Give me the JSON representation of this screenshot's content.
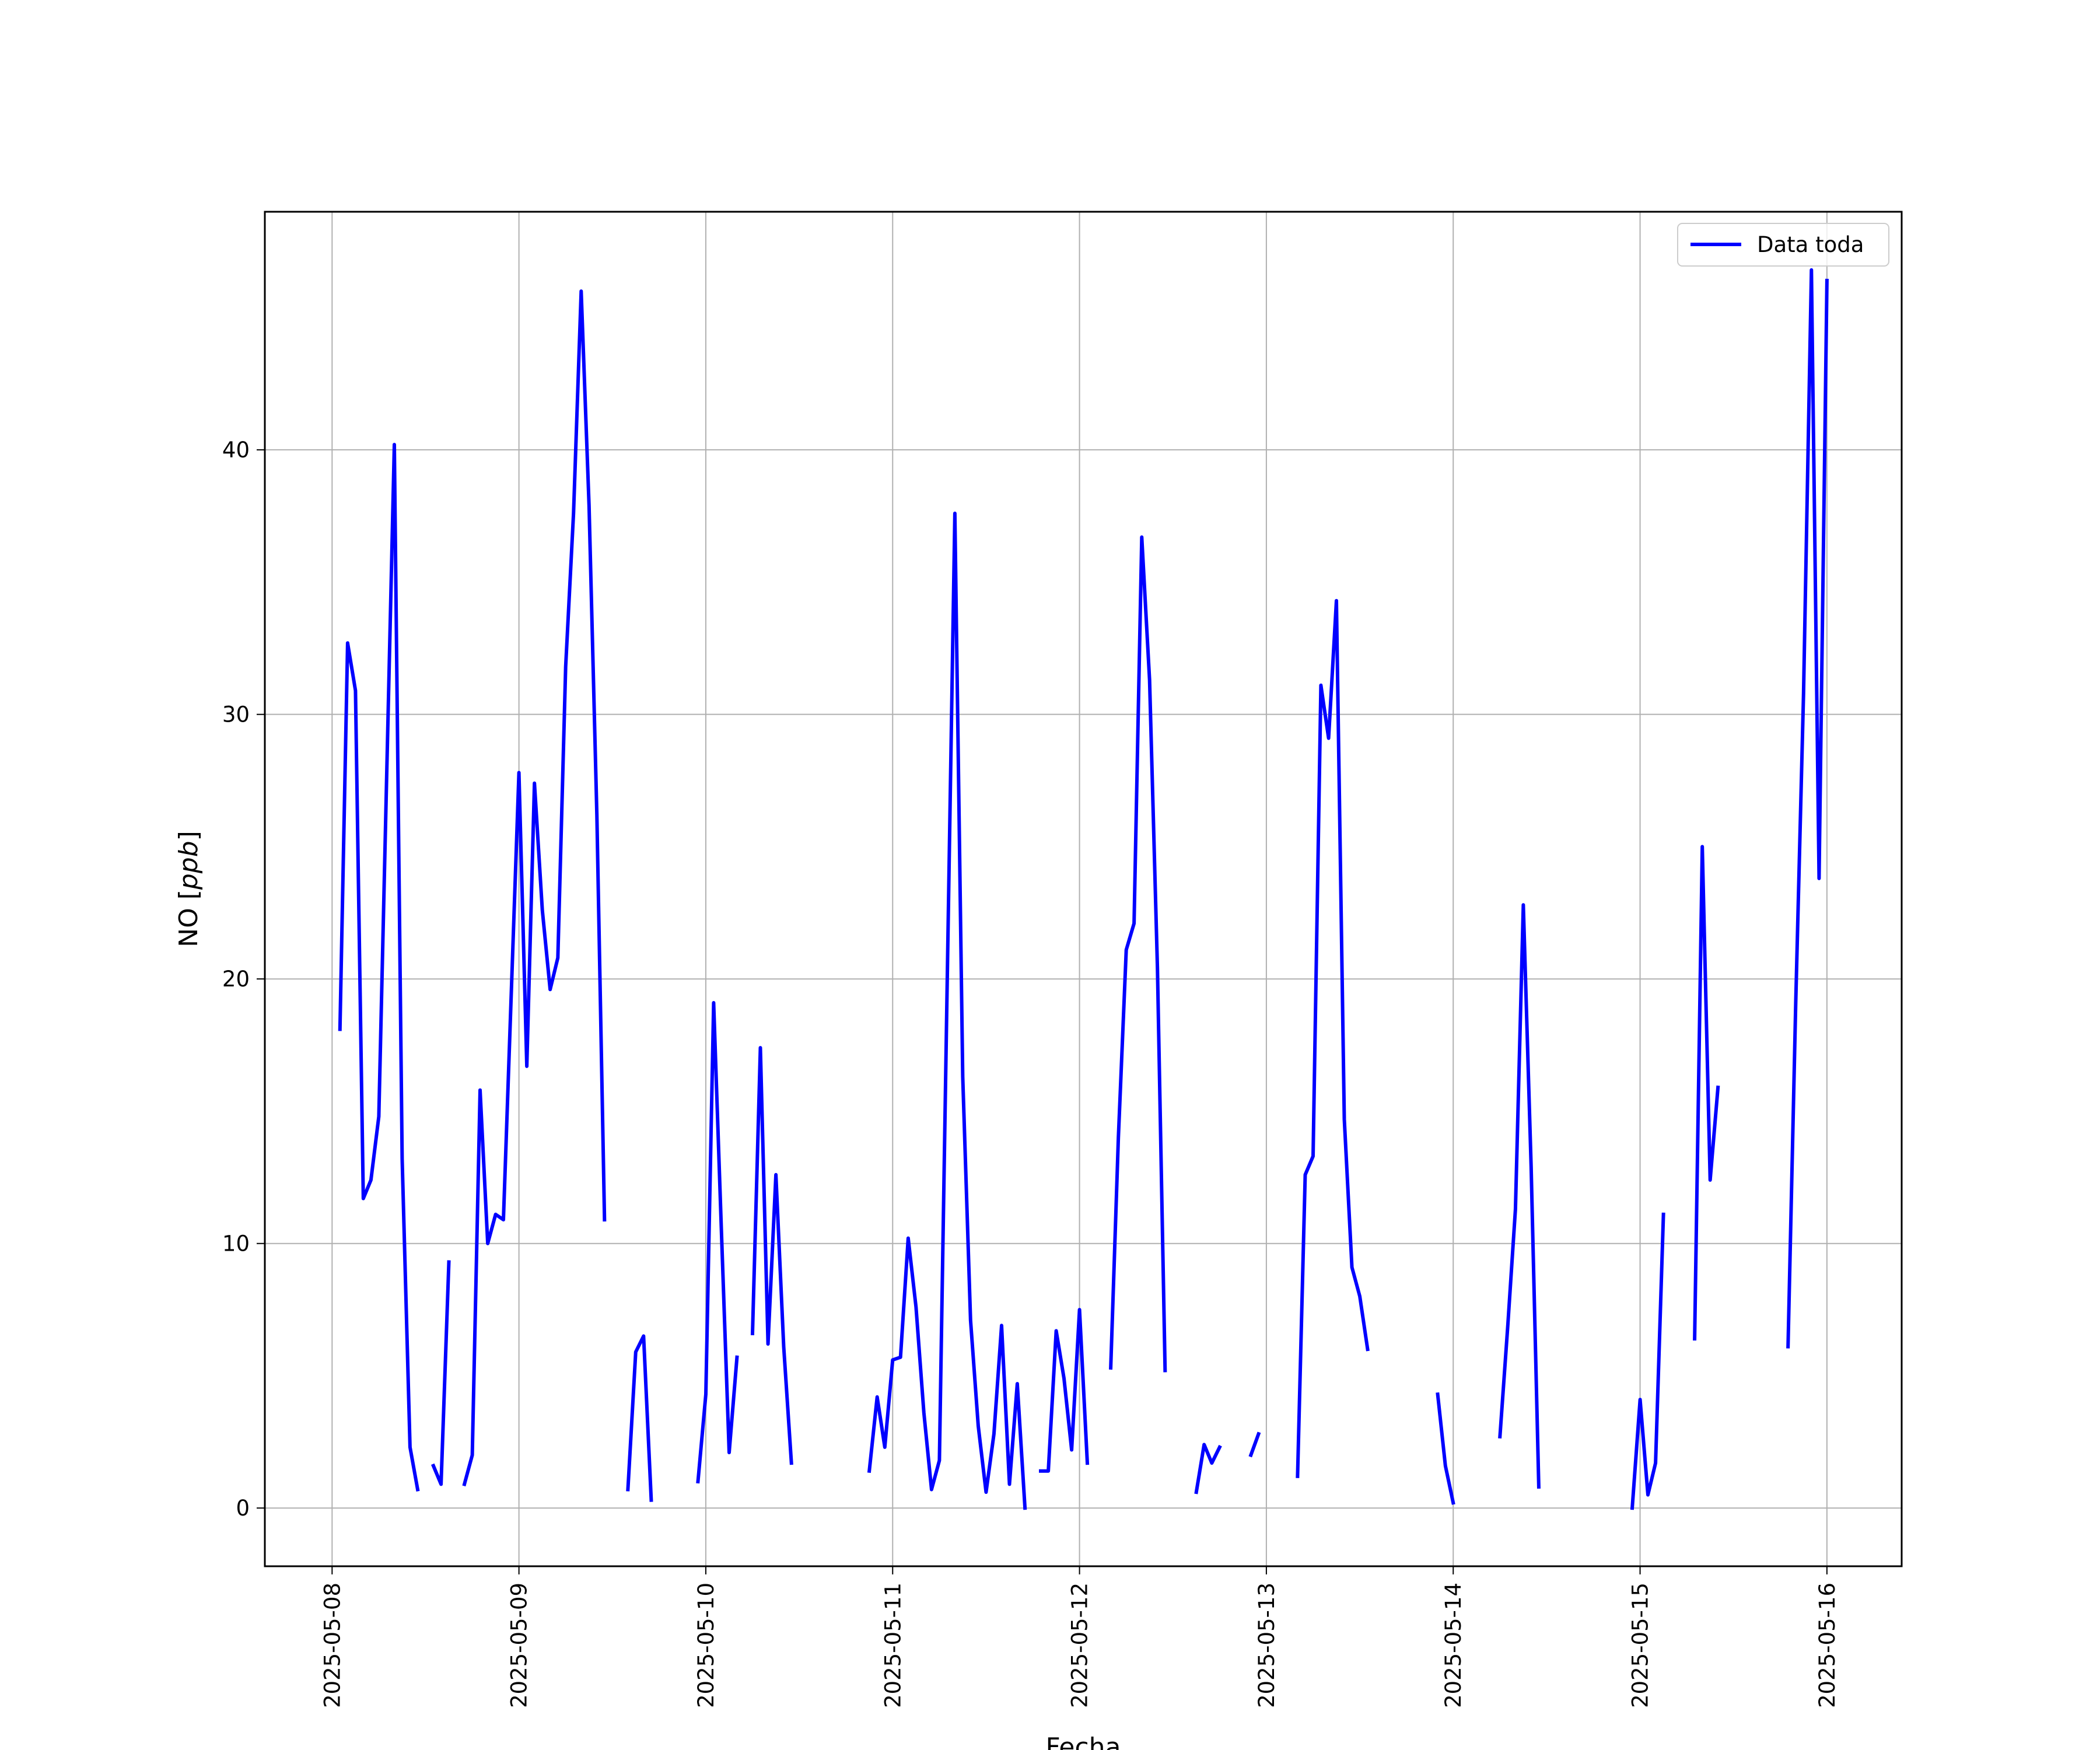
{
  "chart_data": {
    "type": "line",
    "title": "",
    "xlabel": "Fecha",
    "ylabel": "NO [ppb]",
    "ylabel_main": "NO [",
    "ylabel_unit": "ppb",
    "ylabel_close": "]",
    "x_ticks": [
      "2025-05-08",
      "2025-05-09",
      "2025-05-10",
      "2025-05-11",
      "2025-05-12",
      "2025-05-13",
      "2025-05-14",
      "2025-05-15",
      "2025-05-16"
    ],
    "y_ticks": [
      0,
      10,
      20,
      30,
      40
    ],
    "xlim": [
      -0.36,
      8.4
    ],
    "ylim": [
      -2.2,
      49.0
    ],
    "grid": true,
    "legend": {
      "placement": "top-right",
      "entries": [
        "Data toda"
      ]
    },
    "series": [
      {
        "name": "Data toda",
        "color": "#0000ff",
        "x_unit": "days since 2025-05-08 00:00",
        "segments": [
          [
            [
              0.042,
              18.1
            ],
            [
              0.083,
              32.7
            ],
            [
              0.125,
              30.9
            ],
            [
              0.167,
              11.7
            ],
            [
              0.208,
              12.4
            ],
            [
              0.25,
              14.8
            ],
            [
              0.333,
              40.2
            ],
            [
              0.375,
              13.2
            ],
            [
              0.417,
              2.3
            ],
            [
              0.458,
              0.7
            ]
          ],
          [
            [
              0.542,
              1.6
            ],
            [
              0.583,
              0.9
            ],
            [
              0.625,
              9.3
            ]
          ],
          [
            [
              0.708,
              0.9
            ],
            [
              0.75,
              2.0
            ],
            [
              0.792,
              15.8
            ],
            [
              0.833,
              10.0
            ],
            [
              0.875,
              11.1
            ],
            [
              0.917,
              10.9
            ],
            [
              1.0,
              27.8
            ],
            [
              1.042,
              16.7
            ],
            [
              1.083,
              27.4
            ],
            [
              1.125,
              22.6
            ],
            [
              1.167,
              19.6
            ],
            [
              1.208,
              20.8
            ],
            [
              1.25,
              31.8
            ],
            [
              1.292,
              37.6
            ],
            [
              1.333,
              46.0
            ],
            [
              1.375,
              37.9
            ],
            [
              1.417,
              26.2
            ],
            [
              1.458,
              10.9
            ]
          ],
          [
            [
              1.583,
              0.7
            ],
            [
              1.625,
              5.9
            ],
            [
              1.667,
              6.5
            ],
            [
              1.708,
              0.3
            ]
          ],
          [
            [
              1.958,
              1.0
            ],
            [
              2.0,
              4.3
            ],
            [
              2.042,
              19.1
            ],
            [
              2.083,
              10.6
            ],
            [
              2.125,
              2.1
            ],
            [
              2.167,
              5.7
            ]
          ],
          [
            [
              2.25,
              6.6
            ],
            [
              2.292,
              17.4
            ],
            [
              2.333,
              6.2
            ],
            [
              2.375,
              12.6
            ],
            [
              2.417,
              6.1
            ],
            [
              2.458,
              1.7
            ]
          ],
          [
            [
              2.875,
              1.4
            ],
            [
              2.917,
              4.2
            ],
            [
              2.958,
              2.3
            ],
            [
              3.0,
              5.6
            ],
            [
              3.042,
              5.7
            ],
            [
              3.083,
              10.2
            ],
            [
              3.125,
              7.6
            ],
            [
              3.167,
              3.6
            ],
            [
              3.208,
              0.7
            ],
            [
              3.25,
              1.8
            ],
            [
              3.333,
              37.6
            ],
            [
              3.375,
              16.3
            ],
            [
              3.417,
              7.1
            ],
            [
              3.458,
              3.1
            ],
            [
              3.5,
              0.6
            ],
            [
              3.542,
              2.8
            ],
            [
              3.583,
              6.9
            ],
            [
              3.625,
              0.9
            ],
            [
              3.667,
              4.7
            ],
            [
              3.708,
              0.0
            ]
          ],
          [
            [
              3.792,
              1.4
            ],
            [
              3.833,
              1.4
            ],
            [
              3.875,
              6.7
            ],
            [
              3.917,
              4.9
            ],
            [
              3.958,
              2.2
            ],
            [
              4.0,
              7.5
            ],
            [
              4.042,
              1.7
            ]
          ],
          [
            [
              4.167,
              5.3
            ],
            [
              4.208,
              14.0
            ],
            [
              4.25,
              21.1
            ],
            [
              4.292,
              22.1
            ],
            [
              4.333,
              36.7
            ],
            [
              4.375,
              31.3
            ],
            [
              4.417,
              20.4
            ],
            [
              4.458,
              5.2
            ]
          ],
          [
            [
              4.625,
              0.6
            ],
            [
              4.667,
              2.4
            ],
            [
              4.708,
              1.7
            ],
            [
              4.75,
              2.3
            ]
          ],
          [
            [
              4.917,
              2.0
            ],
            [
              4.958,
              2.8
            ]
          ],
          [
            [
              5.167,
              1.2
            ],
            [
              5.208,
              12.6
            ],
            [
              5.25,
              13.3
            ],
            [
              5.292,
              31.1
            ],
            [
              5.333,
              29.1
            ],
            [
              5.375,
              34.3
            ],
            [
              5.417,
              14.7
            ],
            [
              5.458,
              9.1
            ],
            [
              5.5,
              8.0
            ],
            [
              5.542,
              6.0
            ]
          ],
          [
            [
              5.917,
              4.3
            ],
            [
              5.958,
              1.6
            ],
            [
              6.0,
              0.2
            ]
          ],
          [
            [
              6.25,
              2.7
            ],
            [
              6.292,
              6.9
            ],
            [
              6.333,
              11.3
            ],
            [
              6.375,
              22.8
            ],
            [
              6.417,
              12.9
            ],
            [
              6.458,
              0.8
            ]
          ],
          [
            [
              6.958,
              0.0
            ],
            [
              7.0,
              4.1
            ],
            [
              7.042,
              0.5
            ],
            [
              7.083,
              1.7
            ],
            [
              7.125,
              11.1
            ]
          ],
          [
            [
              7.292,
              6.4
            ],
            [
              7.333,
              25.0
            ],
            [
              7.375,
              12.4
            ],
            [
              7.417,
              15.9
            ]
          ],
          [
            [
              7.792,
              6.1
            ],
            [
              7.833,
              19.1
            ],
            [
              7.875,
              30.8
            ],
            [
              7.917,
              46.8
            ],
            [
              7.958,
              23.8
            ],
            [
              8.0,
              46.4
            ]
          ]
        ]
      }
    ]
  }
}
